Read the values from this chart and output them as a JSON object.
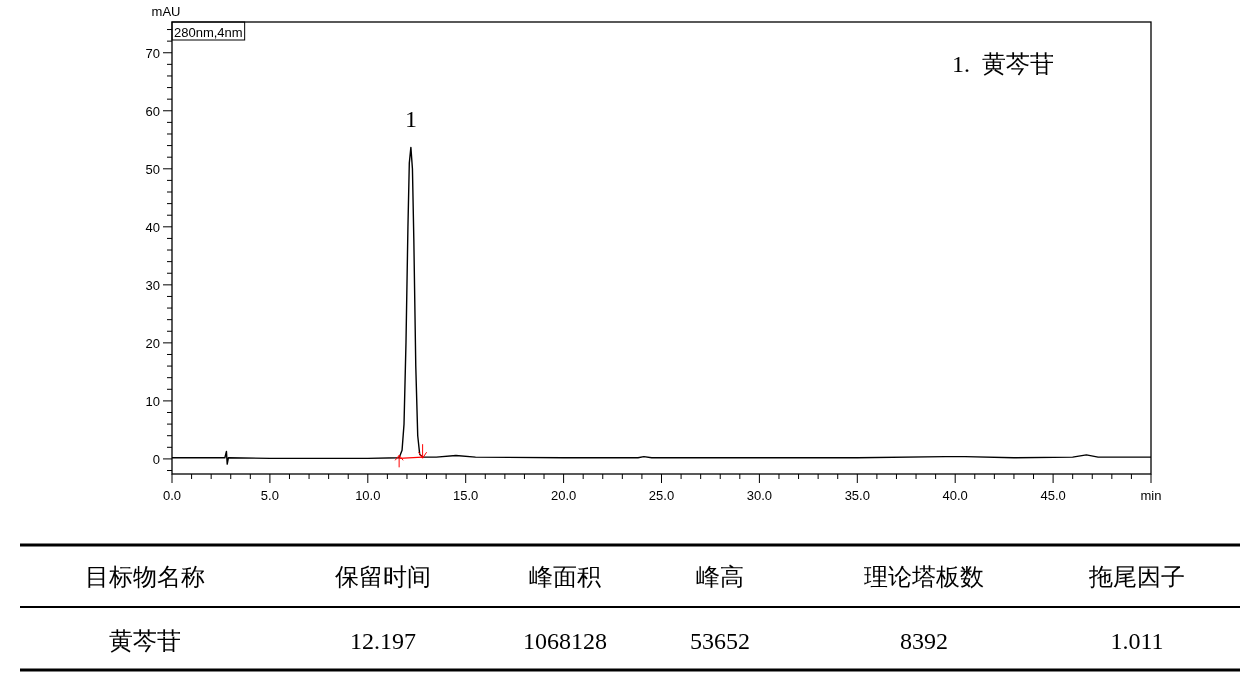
{
  "chart_data": {
    "type": "line",
    "ylabel": "mAU",
    "xlim": [
      0,
      50
    ],
    "ylim": [
      -2.6,
      75.3
    ],
    "xticks": [
      {
        "value": 0,
        "label": "0.0"
      },
      {
        "value": 1,
        "label": null
      },
      {
        "value": 2,
        "label": null
      },
      {
        "value": 3,
        "label": null
      },
      {
        "value": 4,
        "label": null
      },
      {
        "value": 5,
        "label": "5.0"
      },
      {
        "value": 6,
        "label": null
      },
      {
        "value": 7,
        "label": null
      },
      {
        "value": 8,
        "label": null
      },
      {
        "value": 9,
        "label": null
      },
      {
        "value": 10,
        "label": "10.0"
      },
      {
        "value": 11,
        "label": null
      },
      {
        "value": 12,
        "label": null
      },
      {
        "value": 13,
        "label": null
      },
      {
        "value": 14,
        "label": null
      },
      {
        "value": 15,
        "label": "15.0"
      },
      {
        "value": 16,
        "label": null
      },
      {
        "value": 17,
        "label": null
      },
      {
        "value": 18,
        "label": null
      },
      {
        "value": 19,
        "label": null
      },
      {
        "value": 20,
        "label": "20.0"
      },
      {
        "value": 21,
        "label": null
      },
      {
        "value": 22,
        "label": null
      },
      {
        "value": 23,
        "label": null
      },
      {
        "value": 24,
        "label": null
      },
      {
        "value": 25,
        "label": "25.0"
      },
      {
        "value": 26,
        "label": null
      },
      {
        "value": 27,
        "label": null
      },
      {
        "value": 28,
        "label": null
      },
      {
        "value": 29,
        "label": null
      },
      {
        "value": 30,
        "label": "30.0"
      },
      {
        "value": 31,
        "label": null
      },
      {
        "value": 32,
        "label": null
      },
      {
        "value": 33,
        "label": null
      },
      {
        "value": 34,
        "label": null
      },
      {
        "value": 35,
        "label": "35.0"
      },
      {
        "value": 36,
        "label": null
      },
      {
        "value": 37,
        "label": null
      },
      {
        "value": 38,
        "label": null
      },
      {
        "value": 39,
        "label": null
      },
      {
        "value": 40,
        "label": "40.0"
      },
      {
        "value": 41,
        "label": null
      },
      {
        "value": 42,
        "label": null
      },
      {
        "value": 43,
        "label": null
      },
      {
        "value": 44,
        "label": null
      },
      {
        "value": 45,
        "label": "45.0"
      },
      {
        "value": 46,
        "label": null
      },
      {
        "value": 47,
        "label": null
      },
      {
        "value": 48,
        "label": null
      },
      {
        "value": 49,
        "label": null
      },
      {
        "value": 50,
        "label": "min"
      }
    ],
    "yticks": [
      {
        "value": -2,
        "label": null
      },
      0,
      {
        "value": 2,
        "label": null
      },
      {
        "value": 4,
        "label": null
      },
      {
        "value": 6,
        "label": null
      },
      {
        "value": 8,
        "label": null
      },
      10,
      {
        "value": 12,
        "label": null
      },
      {
        "value": 14,
        "label": null
      },
      {
        "value": 16,
        "label": null
      },
      {
        "value": 18,
        "label": null
      },
      20,
      {
        "value": 22,
        "label": null
      },
      {
        "value": 24,
        "label": null
      },
      {
        "value": 26,
        "label": null
      },
      {
        "value": 28,
        "label": null
      },
      30,
      {
        "value": 32,
        "label": null
      },
      {
        "value": 34,
        "label": null
      },
      {
        "value": 36,
        "label": null
      },
      {
        "value": 38,
        "label": null
      },
      40,
      {
        "value": 42,
        "label": null
      },
      {
        "value": 44,
        "label": null
      },
      {
        "value": 46,
        "label": null
      },
      {
        "value": 48,
        "label": null
      },
      50,
      {
        "value": 52,
        "label": null
      },
      {
        "value": 54,
        "label": null
      },
      {
        "value": 56,
        "label": null
      },
      {
        "value": 58,
        "label": null
      },
      60,
      {
        "value": 62,
        "label": null
      },
      {
        "value": 64,
        "label": null
      },
      {
        "value": 66,
        "label": null
      },
      {
        "value": 68,
        "label": null
      },
      70,
      {
        "value": 72,
        "label": null
      },
      {
        "value": 74,
        "label": null
      }
    ],
    "series": [
      {
        "color": "#000000",
        "x": [
          0,
          2.7,
          2.78,
          2.82,
          2.88,
          5,
          10,
          11.6,
          11.75,
          11.85,
          11.95,
          12.05,
          12.12,
          12.2,
          12.28,
          12.35,
          12.45,
          12.55,
          12.65,
          12.8,
          13.5,
          14.5,
          15.5,
          20,
          23.8,
          24.1,
          24.5,
          30,
          35,
          39.5,
          40.5,
          43,
          46,
          46.7,
          47.3,
          50
        ],
        "values": [
          0.2,
          0.2,
          1.3,
          -0.9,
          0.2,
          0.1,
          0.1,
          0.2,
          1.5,
          6,
          20,
          40,
          51,
          53.7,
          50,
          38,
          16,
          4,
          0.8,
          0.3,
          0.3,
          0.6,
          0.3,
          0.2,
          0.2,
          0.4,
          0.2,
          0.2,
          0.2,
          0.4,
          0.4,
          0.2,
          0.3,
          0.7,
          0.3,
          0.3
        ]
      },
      {
        "type": "line",
        "color": "#ff0000",
        "x": [
          11.6,
          12.8
        ],
        "values": [
          0.1,
          0.3
        ]
      }
    ],
    "marker": "none",
    "grid": false,
    "annotations": [
      "280nm,4nm",
      {
        "text": "1",
        "x": 12.2,
        "y": 53.7
      },
      "1.  黄芩苷",
      "目标物名称",
      "保留时间",
      "峰面积",
      "峰高",
      "理论塔板数",
      "拖尾因子",
      "黄芩苷",
      "12.197",
      "1068128",
      "53652",
      "8392",
      "1.011"
    ]
  }
}
